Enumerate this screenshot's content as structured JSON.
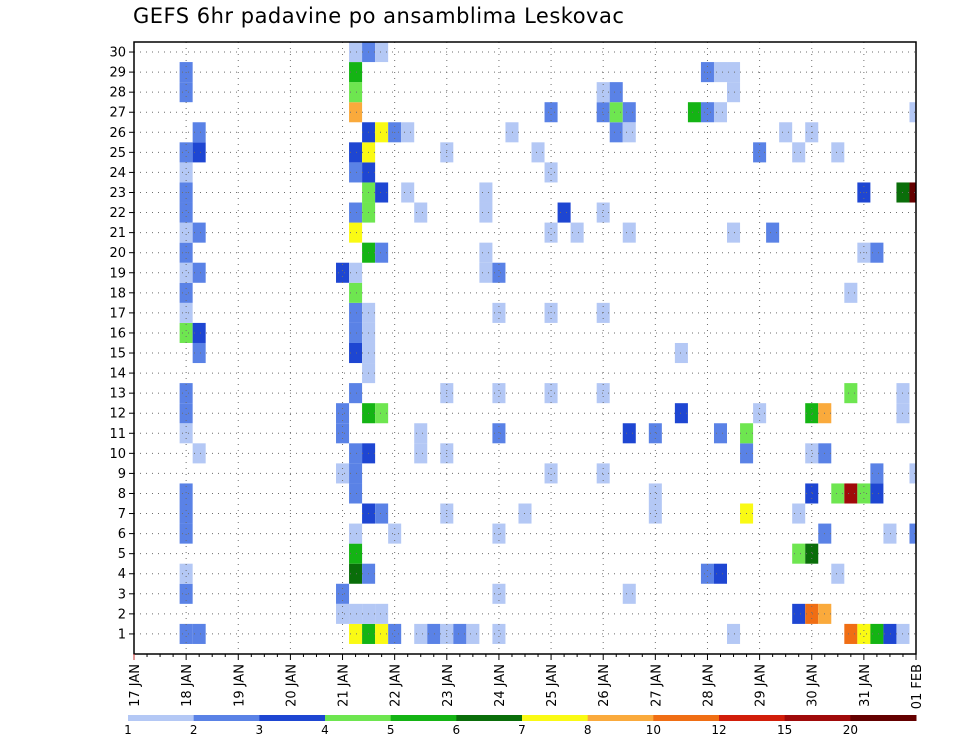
{
  "chart_data": {
    "type": "heatmap",
    "title": "GEFS 6hr padavine po ansamblima Leskovac",
    "xlabel": "",
    "ylabel": "",
    "x_ticks": [
      "17 JAN",
      "18 JAN",
      "19 JAN",
      "20 JAN",
      "21 JAN",
      "22 JAN",
      "23 JAN",
      "24 JAN",
      "25 JAN",
      "26 JAN",
      "27 JAN",
      "28 JAN",
      "29 JAN",
      "30 JAN",
      "31 JAN",
      "01 FEB"
    ],
    "y_ticks": [
      1,
      2,
      3,
      4,
      5,
      6,
      7,
      8,
      9,
      10,
      11,
      12,
      13,
      14,
      15,
      16,
      17,
      18,
      19,
      20,
      21,
      22,
      23,
      24,
      25,
      26,
      27,
      28,
      29,
      30
    ],
    "x_range": [
      "17 JAN 00Z",
      "01 FEB 00Z"
    ],
    "time_step_hours": 6,
    "grid": "dotted",
    "colorbar": {
      "position": "bottom",
      "labels": [
        "1",
        "2",
        "3",
        "4",
        "5",
        "6",
        "7",
        "8",
        "10",
        "12",
        "15",
        "20"
      ],
      "colors": [
        "#b4c8f5",
        "#5a82e6",
        "#1e46d2",
        "#6ee650",
        "#14b414",
        "#0a6e0a",
        "#fafa14",
        "#faaa3c",
        "#f06e14",
        "#d21e0a",
        "#a00a0a",
        "#640000"
      ]
    },
    "cells": [
      {
        "m": 1,
        "t": "18 JAN 00Z",
        "v": 2
      },
      {
        "m": 1,
        "t": "18 JAN 06Z",
        "v": 2
      },
      {
        "m": 1,
        "t": "21 JAN 06Z",
        "v": 7
      },
      {
        "m": 1,
        "t": "21 JAN 12Z",
        "v": 5
      },
      {
        "m": 1,
        "t": "21 JAN 18Z",
        "v": 7
      },
      {
        "m": 1,
        "t": "22 JAN 00Z",
        "v": 2
      },
      {
        "m": 1,
        "t": "22 JAN 12Z",
        "v": 1
      },
      {
        "m": 1,
        "t": "22 JAN 18Z",
        "v": 2
      },
      {
        "m": 1,
        "t": "23 JAN 00Z",
        "v": 1
      },
      {
        "m": 1,
        "t": "23 JAN 06Z",
        "v": 2
      },
      {
        "m": 1,
        "t": "23 JAN 12Z",
        "v": 1
      },
      {
        "m": 1,
        "t": "24 JAN 00Z",
        "v": 1
      },
      {
        "m": 1,
        "t": "28 JAN 12Z",
        "v": 1
      },
      {
        "m": 1,
        "t": "30 JAN 18Z",
        "v": 10
      },
      {
        "m": 1,
        "t": "31 JAN 00Z",
        "v": 7
      },
      {
        "m": 1,
        "t": "31 JAN 06Z",
        "v": 5
      },
      {
        "m": 1,
        "t": "31 JAN 12Z",
        "v": 3
      },
      {
        "m": 1,
        "t": "31 JAN 18Z",
        "v": 1
      },
      {
        "m": 2,
        "t": "21 JAN 00Z",
        "v": 1
      },
      {
        "m": 2,
        "t": "21 JAN 06Z",
        "v": 1
      },
      {
        "m": 2,
        "t": "21 JAN 12Z",
        "v": 1
      },
      {
        "m": 2,
        "t": "21 JAN 18Z",
        "v": 1
      },
      {
        "m": 2,
        "t": "29 JAN 18Z",
        "v": 3
      },
      {
        "m": 2,
        "t": "30 JAN 00Z",
        "v": 10
      },
      {
        "m": 2,
        "t": "30 JAN 06Z",
        "v": 8
      },
      {
        "m": 3,
        "t": "18 JAN 00Z",
        "v": 2
      },
      {
        "m": 3,
        "t": "21 JAN 00Z",
        "v": 2
      },
      {
        "m": 3,
        "t": "24 JAN 00Z",
        "v": 1
      },
      {
        "m": 3,
        "t": "26 JAN 12Z",
        "v": 1
      },
      {
        "m": 4,
        "t": "18 JAN 00Z",
        "v": 1
      },
      {
        "m": 4,
        "t": "21 JAN 06Z",
        "v": 6
      },
      {
        "m": 4,
        "t": "21 JAN 12Z",
        "v": 2
      },
      {
        "m": 4,
        "t": "28 JAN 00Z",
        "v": 2
      },
      {
        "m": 4,
        "t": "28 JAN 06Z",
        "v": 3
      },
      {
        "m": 4,
        "t": "30 JAN 12Z",
        "v": 1
      },
      {
        "m": 5,
        "t": "21 JAN 06Z",
        "v": 5
      },
      {
        "m": 5,
        "t": "29 JAN 18Z",
        "v": 4
      },
      {
        "m": 5,
        "t": "30 JAN 00Z",
        "v": 6
      },
      {
        "m": 6,
        "t": "18 JAN 00Z",
        "v": 2
      },
      {
        "m": 6,
        "t": "21 JAN 06Z",
        "v": 1
      },
      {
        "m": 6,
        "t": "22 JAN 00Z",
        "v": 1
      },
      {
        "m": 6,
        "t": "24 JAN 00Z",
        "v": 1
      },
      {
        "m": 6,
        "t": "30 JAN 06Z",
        "v": 2
      },
      {
        "m": 6,
        "t": "31 JAN 12Z",
        "v": 1
      },
      {
        "m": 6,
        "t": "01 FEB 00Z",
        "v": 2
      },
      {
        "m": 7,
        "t": "18 JAN 00Z",
        "v": 2
      },
      {
        "m": 7,
        "t": "21 JAN 12Z",
        "v": 3
      },
      {
        "m": 7,
        "t": "21 JAN 18Z",
        "v": 2
      },
      {
        "m": 7,
        "t": "23 JAN 00Z",
        "v": 1
      },
      {
        "m": 7,
        "t": "24 JAN 12Z",
        "v": 1
      },
      {
        "m": 7,
        "t": "27 JAN 00Z",
        "v": 1
      },
      {
        "m": 7,
        "t": "28 JAN 18Z",
        "v": 7
      },
      {
        "m": 7,
        "t": "29 JAN 18Z",
        "v": 1
      },
      {
        "m": 8,
        "t": "18 JAN 00Z",
        "v": 2
      },
      {
        "m": 8,
        "t": "21 JAN 06Z",
        "v": 2
      },
      {
        "m": 8,
        "t": "27 JAN 00Z",
        "v": 1
      },
      {
        "m": 8,
        "t": "30 JAN 00Z",
        "v": 3
      },
      {
        "m": 8,
        "t": "30 JAN 12Z",
        "v": 4
      },
      {
        "m": 8,
        "t": "30 JAN 18Z",
        "v": 15
      },
      {
        "m": 8,
        "t": "31 JAN 00Z",
        "v": 4
      },
      {
        "m": 8,
        "t": "31 JAN 06Z",
        "v": 3
      },
      {
        "m": 9,
        "t": "21 JAN 00Z",
        "v": 1
      },
      {
        "m": 9,
        "t": "21 JAN 06Z",
        "v": 2
      },
      {
        "m": 9,
        "t": "25 JAN 00Z",
        "v": 1
      },
      {
        "m": 9,
        "t": "26 JAN 00Z",
        "v": 1
      },
      {
        "m": 9,
        "t": "31 JAN 06Z",
        "v": 2
      },
      {
        "m": 9,
        "t": "01 FEB 00Z",
        "v": 1
      },
      {
        "m": 10,
        "t": "18 JAN 06Z",
        "v": 1
      },
      {
        "m": 10,
        "t": "21 JAN 06Z",
        "v": 2
      },
      {
        "m": 10,
        "t": "21 JAN 12Z",
        "v": 3
      },
      {
        "m": 10,
        "t": "22 JAN 12Z",
        "v": 1
      },
      {
        "m": 10,
        "t": "23 JAN 00Z",
        "v": 1
      },
      {
        "m": 10,
        "t": "28 JAN 18Z",
        "v": 2
      },
      {
        "m": 10,
        "t": "30 JAN 00Z",
        "v": 1
      },
      {
        "m": 10,
        "t": "30 JAN 06Z",
        "v": 2
      },
      {
        "m": 11,
        "t": "18 JAN 00Z",
        "v": 1
      },
      {
        "m": 11,
        "t": "21 JAN 00Z",
        "v": 2
      },
      {
        "m": 11,
        "t": "22 JAN 12Z",
        "v": 1
      },
      {
        "m": 11,
        "t": "24 JAN 00Z",
        "v": 2
      },
      {
        "m": 11,
        "t": "26 JAN 12Z",
        "v": 3
      },
      {
        "m": 11,
        "t": "27 JAN 00Z",
        "v": 2
      },
      {
        "m": 11,
        "t": "28 JAN 06Z",
        "v": 2
      },
      {
        "m": 11,
        "t": "28 JAN 18Z",
        "v": 4
      },
      {
        "m": 12,
        "t": "18 JAN 00Z",
        "v": 2
      },
      {
        "m": 12,
        "t": "21 JAN 00Z",
        "v": 2
      },
      {
        "m": 12,
        "t": "21 JAN 12Z",
        "v": 5
      },
      {
        "m": 12,
        "t": "21 JAN 18Z",
        "v": 4
      },
      {
        "m": 12,
        "t": "27 JAN 12Z",
        "v": 3
      },
      {
        "m": 12,
        "t": "29 JAN 00Z",
        "v": 1
      },
      {
        "m": 12,
        "t": "30 JAN 00Z",
        "v": 5
      },
      {
        "m": 12,
        "t": "30 JAN 06Z",
        "v": 8
      },
      {
        "m": 12,
        "t": "31 JAN 18Z",
        "v": 1
      },
      {
        "m": 13,
        "t": "18 JAN 00Z",
        "v": 2
      },
      {
        "m": 13,
        "t": "21 JAN 06Z",
        "v": 2
      },
      {
        "m": 13,
        "t": "23 JAN 00Z",
        "v": 1
      },
      {
        "m": 13,
        "t": "24 JAN 00Z",
        "v": 1
      },
      {
        "m": 13,
        "t": "25 JAN 00Z",
        "v": 1
      },
      {
        "m": 13,
        "t": "26 JAN 00Z",
        "v": 1
      },
      {
        "m": 13,
        "t": "30 JAN 18Z",
        "v": 4
      },
      {
        "m": 13,
        "t": "31 JAN 18Z",
        "v": 1
      },
      {
        "m": 14,
        "t": "21 JAN 12Z",
        "v": 1
      },
      {
        "m": 15,
        "t": "18 JAN 06Z",
        "v": 2
      },
      {
        "m": 15,
        "t": "21 JAN 06Z",
        "v": 3
      },
      {
        "m": 15,
        "t": "21 JAN 12Z",
        "v": 1
      },
      {
        "m": 15,
        "t": "27 JAN 12Z",
        "v": 1
      },
      {
        "m": 16,
        "t": "18 JAN 00Z",
        "v": 4
      },
      {
        "m": 16,
        "t": "18 JAN 06Z",
        "v": 3
      },
      {
        "m": 16,
        "t": "21 JAN 06Z",
        "v": 2
      },
      {
        "m": 16,
        "t": "21 JAN 12Z",
        "v": 1
      },
      {
        "m": 17,
        "t": "18 JAN 00Z",
        "v": 1
      },
      {
        "m": 17,
        "t": "21 JAN 06Z",
        "v": 2
      },
      {
        "m": 17,
        "t": "21 JAN 12Z",
        "v": 1
      },
      {
        "m": 17,
        "t": "24 JAN 00Z",
        "v": 1
      },
      {
        "m": 17,
        "t": "25 JAN 00Z",
        "v": 1
      },
      {
        "m": 17,
        "t": "26 JAN 00Z",
        "v": 1
      },
      {
        "m": 18,
        "t": "18 JAN 00Z",
        "v": 2
      },
      {
        "m": 18,
        "t": "21 JAN 06Z",
        "v": 4
      },
      {
        "m": 18,
        "t": "30 JAN 18Z",
        "v": 1
      },
      {
        "m": 19,
        "t": "18 JAN 00Z",
        "v": 1
      },
      {
        "m": 19,
        "t": "18 JAN 06Z",
        "v": 2
      },
      {
        "m": 19,
        "t": "21 JAN 00Z",
        "v": 3
      },
      {
        "m": 19,
        "t": "21 JAN 06Z",
        "v": 1
      },
      {
        "m": 19,
        "t": "23 JAN 18Z",
        "v": 1
      },
      {
        "m": 19,
        "t": "24 JAN 00Z",
        "v": 2
      },
      {
        "m": 20,
        "t": "18 JAN 00Z",
        "v": 2
      },
      {
        "m": 20,
        "t": "21 JAN 12Z",
        "v": 5
      },
      {
        "m": 20,
        "t": "21 JAN 18Z",
        "v": 2
      },
      {
        "m": 20,
        "t": "23 JAN 18Z",
        "v": 1
      },
      {
        "m": 20,
        "t": "31 JAN 00Z",
        "v": 1
      },
      {
        "m": 20,
        "t": "31 JAN 06Z",
        "v": 2
      },
      {
        "m": 21,
        "t": "18 JAN 00Z",
        "v": 1
      },
      {
        "m": 21,
        "t": "18 JAN 06Z",
        "v": 2
      },
      {
        "m": 21,
        "t": "21 JAN 06Z",
        "v": 7
      },
      {
        "m": 21,
        "t": "25 JAN 00Z",
        "v": 1
      },
      {
        "m": 21,
        "t": "25 JAN 12Z",
        "v": 1
      },
      {
        "m": 21,
        "t": "26 JAN 12Z",
        "v": 1
      },
      {
        "m": 21,
        "t": "28 JAN 12Z",
        "v": 1
      },
      {
        "m": 21,
        "t": "29 JAN 06Z",
        "v": 2
      },
      {
        "m": 22,
        "t": "18 JAN 00Z",
        "v": 2
      },
      {
        "m": 22,
        "t": "21 JAN 06Z",
        "v": 2
      },
      {
        "m": 22,
        "t": "21 JAN 12Z",
        "v": 4
      },
      {
        "m": 22,
        "t": "22 JAN 12Z",
        "v": 1
      },
      {
        "m": 22,
        "t": "23 JAN 18Z",
        "v": 1
      },
      {
        "m": 22,
        "t": "25 JAN 06Z",
        "v": 3
      },
      {
        "m": 22,
        "t": "26 JAN 00Z",
        "v": 1
      },
      {
        "m": 23,
        "t": "18 JAN 00Z",
        "v": 2
      },
      {
        "m": 23,
        "t": "21 JAN 12Z",
        "v": 4
      },
      {
        "m": 23,
        "t": "21 JAN 18Z",
        "v": 3
      },
      {
        "m": 23,
        "t": "22 JAN 06Z",
        "v": 1
      },
      {
        "m": 23,
        "t": "23 JAN 18Z",
        "v": 1
      },
      {
        "m": 23,
        "t": "31 JAN 00Z",
        "v": 3
      },
      {
        "m": 23,
        "t": "31 JAN 18Z",
        "v": 6
      },
      {
        "m": 23,
        "t": "01 FEB 00Z",
        "v": 20
      },
      {
        "m": 24,
        "t": "18 JAN 00Z",
        "v": 1
      },
      {
        "m": 24,
        "t": "21 JAN 06Z",
        "v": 2
      },
      {
        "m": 24,
        "t": "21 JAN 12Z",
        "v": 3
      },
      {
        "m": 24,
        "t": "25 JAN 00Z",
        "v": 1
      },
      {
        "m": 25,
        "t": "18 JAN 00Z",
        "v": 2
      },
      {
        "m": 25,
        "t": "18 JAN 06Z",
        "v": 3
      },
      {
        "m": 25,
        "t": "21 JAN 06Z",
        "v": 3
      },
      {
        "m": 25,
        "t": "21 JAN 12Z",
        "v": 7
      },
      {
        "m": 25,
        "t": "23 JAN 00Z",
        "v": 1
      },
      {
        "m": 25,
        "t": "24 JAN 18Z",
        "v": 1
      },
      {
        "m": 25,
        "t": "29 JAN 00Z",
        "v": 2
      },
      {
        "m": 25,
        "t": "29 JAN 18Z",
        "v": 1
      },
      {
        "m": 25,
        "t": "30 JAN 12Z",
        "v": 1
      },
      {
        "m": 26,
        "t": "18 JAN 06Z",
        "v": 2
      },
      {
        "m": 26,
        "t": "21 JAN 12Z",
        "v": 3
      },
      {
        "m": 26,
        "t": "21 JAN 18Z",
        "v": 7
      },
      {
        "m": 26,
        "t": "22 JAN 00Z",
        "v": 2
      },
      {
        "m": 26,
        "t": "22 JAN 06Z",
        "v": 1
      },
      {
        "m": 26,
        "t": "24 JAN 06Z",
        "v": 1
      },
      {
        "m": 26,
        "t": "26 JAN 06Z",
        "v": 2
      },
      {
        "m": 26,
        "t": "26 JAN 12Z",
        "v": 1
      },
      {
        "m": 26,
        "t": "29 JAN 12Z",
        "v": 1
      },
      {
        "m": 26,
        "t": "30 JAN 00Z",
        "v": 1
      },
      {
        "m": 27,
        "t": "21 JAN 06Z",
        "v": 8
      },
      {
        "m": 27,
        "t": "25 JAN 00Z",
        "v": 2
      },
      {
        "m": 27,
        "t": "26 JAN 00Z",
        "v": 2
      },
      {
        "m": 27,
        "t": "26 JAN 06Z",
        "v": 4
      },
      {
        "m": 27,
        "t": "26 JAN 12Z",
        "v": 2
      },
      {
        "m": 27,
        "t": "27 JAN 18Z",
        "v": 5
      },
      {
        "m": 27,
        "t": "28 JAN 00Z",
        "v": 2
      },
      {
        "m": 27,
        "t": "28 JAN 06Z",
        "v": 1
      },
      {
        "m": 27,
        "t": "01 FEB 00Z",
        "v": 1
      },
      {
        "m": 28,
        "t": "18 JAN 00Z",
        "v": 2
      },
      {
        "m": 28,
        "t": "21 JAN 06Z",
        "v": 4
      },
      {
        "m": 28,
        "t": "26 JAN 00Z",
        "v": 1
      },
      {
        "m": 28,
        "t": "26 JAN 06Z",
        "v": 2
      },
      {
        "m": 28,
        "t": "28 JAN 12Z",
        "v": 1
      },
      {
        "m": 29,
        "t": "18 JAN 00Z",
        "v": 2
      },
      {
        "m": 29,
        "t": "21 JAN 06Z",
        "v": 5
      },
      {
        "m": 29,
        "t": "28 JAN 00Z",
        "v": 2
      },
      {
        "m": 29,
        "t": "28 JAN 06Z",
        "v": 1
      },
      {
        "m": 29,
        "t": "28 JAN 12Z",
        "v": 1
      },
      {
        "m": 30,
        "t": "21 JAN 06Z",
        "v": 1
      },
      {
        "m": 30,
        "t": "21 JAN 12Z",
        "v": 2
      },
      {
        "m": 30,
        "t": "21 JAN 18Z",
        "v": 1
      }
    ]
  }
}
